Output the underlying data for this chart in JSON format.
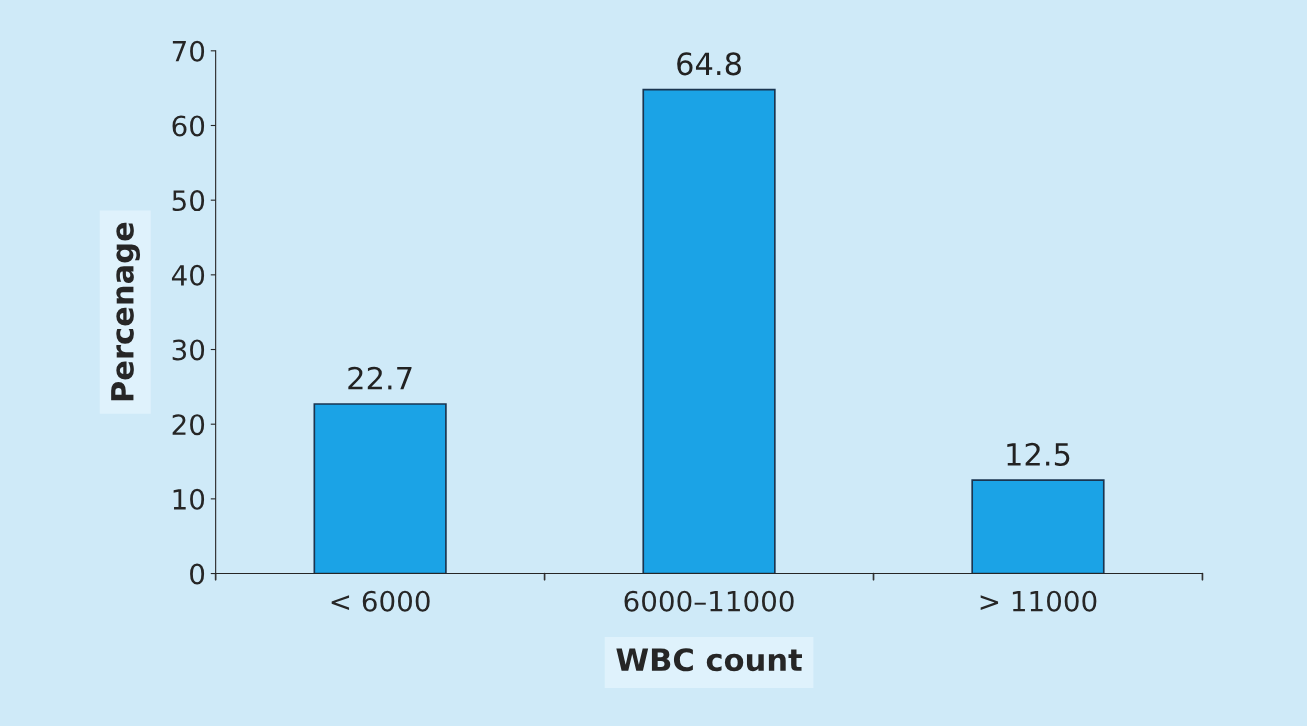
{
  "chart_data": {
    "type": "bar",
    "xlabel": "WBC count",
    "ylabel": "Percenage",
    "categories": [
      "< 6000",
      "6000–11000",
      "> 11000"
    ],
    "values": [
      22.7,
      64.8,
      12.5
    ],
    "color": "#1ba3e6",
    "ylim": [
      0,
      70
    ],
    "yticks": [
      0,
      10,
      20,
      30,
      40,
      50,
      60,
      70
    ],
    "data_labels": true,
    "grid": false,
    "legend": false
  }
}
